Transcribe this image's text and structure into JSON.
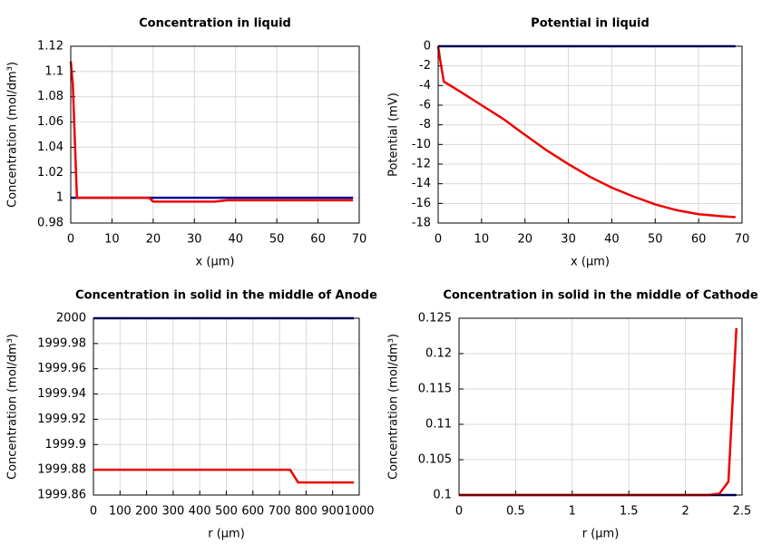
{
  "chart_data": [
    {
      "type": "line",
      "title": "Concentration in liquid",
      "xlabel": "x (µm)",
      "ylabel": "Concentration (mol/dm³)",
      "xlim": [
        0,
        70
      ],
      "xticks": [
        0,
        10,
        20,
        30,
        40,
        50,
        60,
        70
      ],
      "ylim": [
        0.98,
        1.12
      ],
      "yticks": [
        0.98,
        1,
        1.02,
        1.04,
        1.06,
        1.08,
        1.1,
        1.12
      ],
      "grid": true,
      "series": [
        {
          "color": "#00008b",
          "x": [
            0,
            68.5
          ],
          "values": [
            1,
            1
          ]
        },
        {
          "color": "#ee0000",
          "x": [
            0,
            0.5,
            1.5,
            2,
            19,
            20,
            35,
            38,
            68.5
          ],
          "values": [
            1.108,
            1.09,
            1.0,
            1.0,
            1.0,
            0.997,
            0.997,
            0.998,
            0.998
          ]
        }
      ]
    },
    {
      "type": "line",
      "title": "Potential in liquid",
      "xlabel": "x (µm)",
      "ylabel": "Potential (mV)",
      "xlim": [
        0,
        70
      ],
      "xticks": [
        0,
        10,
        20,
        30,
        40,
        50,
        60,
        70
      ],
      "ylim": [
        -18,
        0
      ],
      "yticks": [
        -18,
        -16,
        -14,
        -12,
        -10,
        -8,
        -6,
        -4,
        -2,
        0
      ],
      "grid": true,
      "series": [
        {
          "color": "#00008b",
          "x": [
            0,
            68.5
          ],
          "values": [
            0,
            0
          ]
        },
        {
          "color": "#ee0000",
          "x": [
            0,
            0.5,
            1.3,
            5,
            10,
            15,
            19,
            25,
            30,
            35,
            40,
            45,
            50,
            55,
            60,
            65,
            68.5
          ],
          "values": [
            0,
            -1.5,
            -3.6,
            -4.6,
            -6.0,
            -7.4,
            -8.7,
            -10.6,
            -12.0,
            -13.3,
            -14.4,
            -15.3,
            -16.1,
            -16.7,
            -17.1,
            -17.3,
            -17.4
          ]
        }
      ]
    },
    {
      "type": "line",
      "title": "Concentration in solid in the middle of Anode",
      "xlabel": "r (µm)",
      "ylabel": "Concentration (mol/dm³)",
      "xlim": [
        0,
        1000
      ],
      "xticks": [
        0,
        100,
        200,
        300,
        400,
        500,
        600,
        700,
        800,
        900,
        1000
      ],
      "ylim": [
        1999.86,
        2000
      ],
      "yticks": [
        1999.86,
        1999.88,
        1999.9,
        1999.92,
        1999.94,
        1999.96,
        1999.98,
        2000
      ],
      "grid": true,
      "series": [
        {
          "color": "#00008b",
          "x": [
            0,
            980
          ],
          "values": [
            2000,
            2000
          ]
        },
        {
          "color": "#ee0000",
          "x": [
            0,
            740,
            770,
            980
          ],
          "values": [
            1999.88,
            1999.88,
            1999.87,
            1999.87
          ]
        }
      ]
    },
    {
      "type": "line",
      "title": "Concentration in solid in the middle of Cathode",
      "xlabel": "r (µm)",
      "ylabel": "Concentration (mol/dm³)",
      "xlim": [
        0,
        2.5
      ],
      "xticks": [
        0,
        0.5,
        1,
        1.5,
        2,
        2.5
      ],
      "ylim": [
        0.1,
        0.125
      ],
      "yticks": [
        0.1,
        0.105,
        0.11,
        0.115,
        0.12,
        0.125
      ],
      "grid": true,
      "series": [
        {
          "color": "#00008b",
          "x": [
            0,
            2.45
          ],
          "values": [
            0.1,
            0.1
          ]
        },
        {
          "color": "#ee0000",
          "x": [
            0,
            2.2,
            2.3,
            2.38,
            2.45
          ],
          "values": [
            0.1,
            0.1,
            0.1002,
            0.1019,
            0.1236
          ]
        }
      ]
    }
  ]
}
